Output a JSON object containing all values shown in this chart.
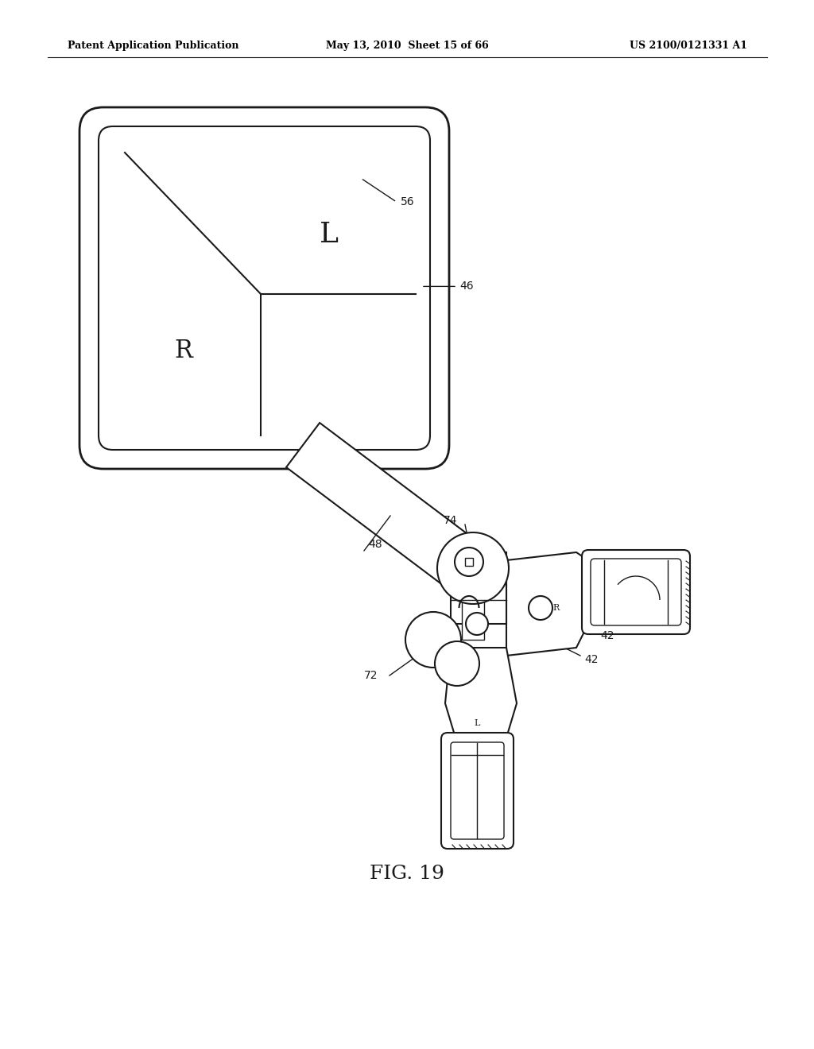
{
  "bg_color": "#ffffff",
  "header_left": "Patent Application Publication",
  "header_mid": "May 13, 2010  Sheet 15 of 66",
  "header_right": "US 2100/0121331 A1",
  "fig_caption": "FIG. 19",
  "line_color": "#1a1a1a",
  "lw": 1.5
}
